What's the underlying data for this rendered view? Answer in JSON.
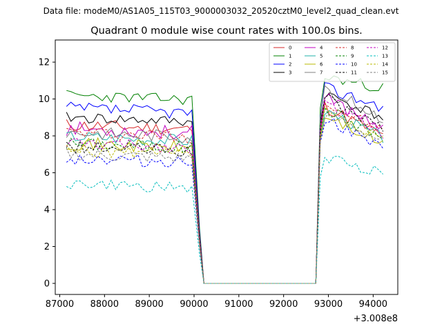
{
  "suptitle": "Data file: modeM0/AS1A05_115T03_9000003032_20520cztM0_level2_quad_clean.evt",
  "chart_data": {
    "type": "line",
    "title": "Quadrant 0 module wise count rates with 100.0s bins.",
    "xlabel": "",
    "ylabel": "",
    "x_offset_label": "+3.008e8",
    "xlim": [
      86900,
      94550
    ],
    "ylim": [
      -0.6,
      13.2
    ],
    "x_ticks": [
      87000,
      88000,
      89000,
      90000,
      91000,
      92000,
      93000,
      94000
    ],
    "x_tick_labels": [
      "87000",
      "88000",
      "89000",
      "90000",
      "91000",
      "92000",
      "93000",
      "94000"
    ],
    "y_ticks": [
      0,
      2,
      4,
      6,
      8,
      10,
      12
    ],
    "y_tick_labels": [
      "0",
      "2",
      "4",
      "6",
      "8",
      "10",
      "12"
    ],
    "grid": false,
    "legend_position": "top-right",
    "legend_columns": 4,
    "segments": {
      "gap_start_x": 90120,
      "gap_zero_from": 90220,
      "gap_zero_to": 92720,
      "gap_end_x": 92820,
      "seg1_start": 87150,
      "seg1_end": 90020,
      "seg2_start": 92920,
      "seg2_end": 94220,
      "bin_width": 100
    },
    "series": [
      {
        "name": "0",
        "color": "#d62728",
        "dash": "solid",
        "level1": 8.6,
        "level2": 9.6,
        "spread": 0.35,
        "decay": 1.6,
        "seed": 11
      },
      {
        "name": "1",
        "color": "#008000",
        "dash": "solid",
        "level1": 10.2,
        "level2": 11.2,
        "spread": 0.3,
        "decay": 0.6,
        "seed": 23
      },
      {
        "name": "2",
        "color": "#0000ff",
        "dash": "solid",
        "level1": 9.5,
        "level2": 10.6,
        "spread": 0.35,
        "decay": 1.0,
        "seed": 37
      },
      {
        "name": "3",
        "color": "#000000",
        "dash": "solid",
        "level1": 9.0,
        "level2": 10.3,
        "spread": 0.3,
        "decay": 1.3,
        "seed": 41
      },
      {
        "name": "4",
        "color": "#c000c0",
        "dash": "solid",
        "level1": 8.4,
        "level2": 10.0,
        "spread": 0.4,
        "decay": 1.4,
        "seed": 53
      },
      {
        "name": "5",
        "color": "#20b2aa",
        "dash": "solid",
        "level1": 8.0,
        "level2": 9.4,
        "spread": 0.35,
        "decay": 1.5,
        "seed": 67
      },
      {
        "name": "6",
        "color": "#b8b800",
        "dash": "solid",
        "level1": 7.6,
        "level2": 9.1,
        "spread": 0.35,
        "decay": 1.6,
        "seed": 71
      },
      {
        "name": "7",
        "color": "#808080",
        "dash": "solid",
        "level1": 8.2,
        "level2": 10.5,
        "spread": 0.35,
        "decay": 1.5,
        "seed": 83
      },
      {
        "name": "8",
        "color": "#d62728",
        "dash": "dashed",
        "level1": 8.2,
        "level2": 9.8,
        "spread": 0.35,
        "decay": 1.6,
        "seed": 97
      },
      {
        "name": "9",
        "color": "#008000",
        "dash": "dashed",
        "level1": 7.6,
        "level2": 9.5,
        "spread": 0.35,
        "decay": 1.6,
        "seed": 101
      },
      {
        "name": "10",
        "color": "#0000ff",
        "dash": "dashed",
        "level1": 6.8,
        "level2": 9.0,
        "spread": 0.35,
        "decay": 1.8,
        "seed": 113
      },
      {
        "name": "11",
        "color": "#000000",
        "dash": "dashed",
        "level1": 7.4,
        "level2": 10.0,
        "spread": 0.35,
        "decay": 1.6,
        "seed": 127
      },
      {
        "name": "12",
        "color": "#c000c0",
        "dash": "dashed",
        "level1": 7.6,
        "level2": 9.7,
        "spread": 0.35,
        "decay": 1.5,
        "seed": 131
      },
      {
        "name": "13",
        "color": "#00bcbc",
        "dash": "dashed",
        "level1": 5.4,
        "level2": 6.8,
        "spread": 0.3,
        "decay": 0.8,
        "seed": 149
      },
      {
        "name": "14",
        "color": "#b8b800",
        "dash": "dashed",
        "level1": 7.2,
        "level2": 9.3,
        "spread": 0.35,
        "decay": 1.6,
        "seed": 157
      },
      {
        "name": "15",
        "color": "#808080",
        "dash": "dashed",
        "level1": 7.0,
        "level2": 9.2,
        "spread": 0.35,
        "decay": 1.5,
        "seed": 163
      }
    ]
  }
}
